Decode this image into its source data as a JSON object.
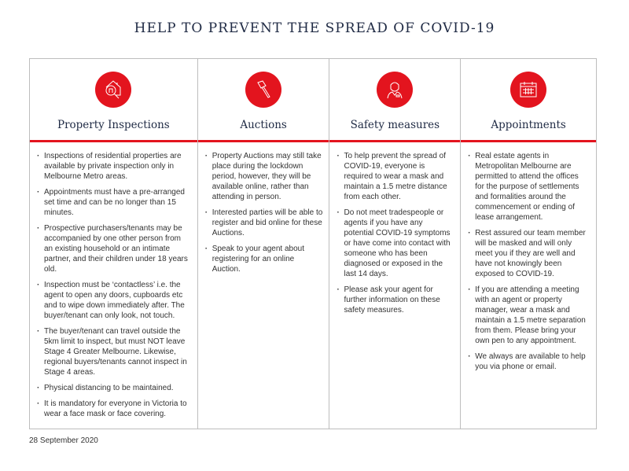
{
  "title": "HELP TO PREVENT THE SPREAD OF COVID-19",
  "accent": "#e3141e",
  "columns": [
    {
      "heading": "Property Inspections",
      "icon": "house-magnifier-icon",
      "items": [
        "Inspections of residential properties are available by private inspection only in Melbourne Metro areas.",
        "Appointments must have a pre-arranged set time and can be no longer than 15 minutes.",
        "Prospective purchasers/tenants may be accompanied by one other person from an existing household or an intimate partner, and their children under 18 years old.",
        "Inspection must be ‘contactless’ i.e. the agent to open any doors, cupboards etc and to wipe down immediately after. The buyer/tenant can only look, not touch.",
        "The buyer/tenant can travel outside the 5km limit to inspect, but must NOT leave Stage 4 Greater Melbourne. Likewise, regional buyers/tenants cannot inspect in Stage 4 areas.",
        "Physical distancing to be maintained.",
        "It is mandatory for everyone in Victoria to wear a face mask or face covering."
      ]
    },
    {
      "heading": "Auctions",
      "icon": "gavel-icon",
      "items": [
        "Property Auctions may still take place during the lockdown period, however, they will be available online, rather than attending in person.",
        "Interested parties will be able to register and bid online for these Auctions.",
        "Speak to your agent about registering for an online Auction."
      ]
    },
    {
      "heading": "Safety measures",
      "icon": "person-icon",
      "items": [
        "To help prevent the spread of COVID-19, everyone is required to wear a mask and maintain a 1.5 metre distance from each other.",
        "Do not meet tradespeople or agents if you have any potential COVID-19 symptoms or have come into contact with someone who has been diagnosed or exposed in the last 14 days.",
        "Please ask your agent for further information on these safety measures."
      ]
    },
    {
      "heading": "Appointments",
      "icon": "calendar-icon",
      "items": [
        "Real estate agents in Metropolitan Melbourne are permitted to attend the offices for the purpose of settlements and formalities around the commencement or ending of lease arrangement.",
        "Rest assured our team member will be masked and will only meet you if they are well and have not knowingly been exposed to COVID-19.",
        "If you are attending a meeting with an agent or property manager, wear a mask and maintain a 1.5 metre separation from them. Please bring your own pen to any appointment.",
        "We always are available to help you via phone or email."
      ]
    }
  ],
  "date": "28 September 2020"
}
